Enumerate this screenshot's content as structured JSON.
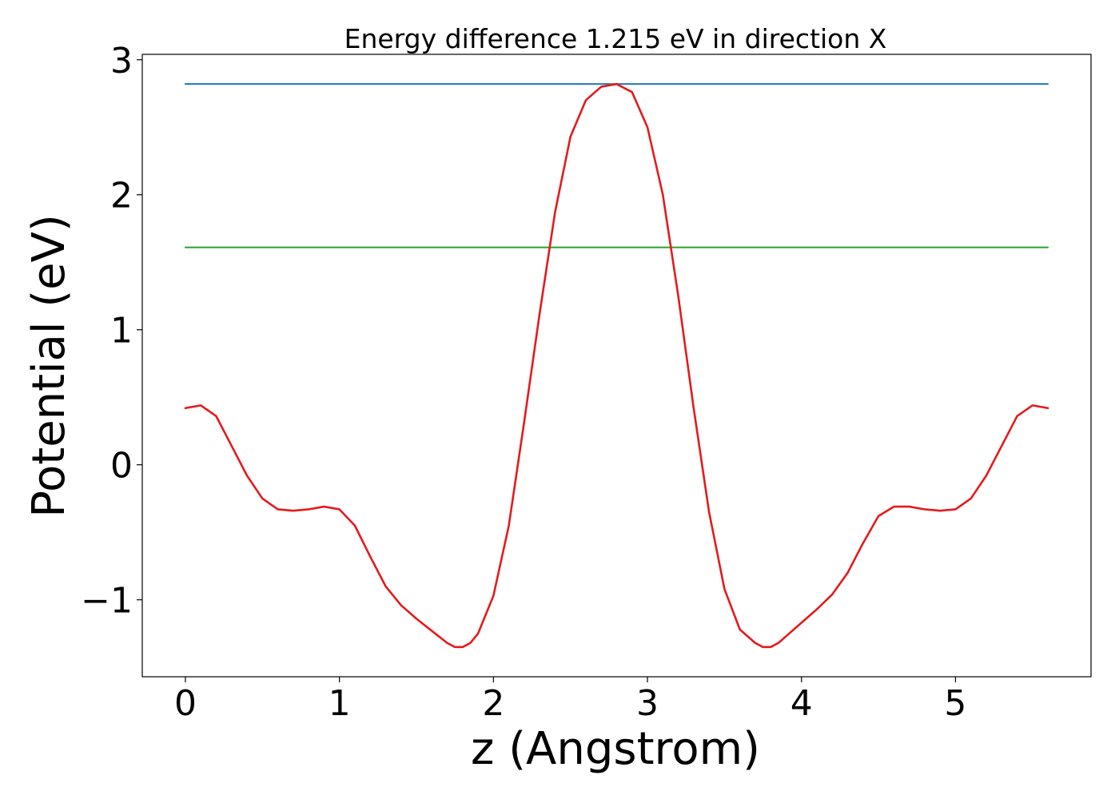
{
  "chart_data": {
    "type": "line",
    "title": "Energy difference 1.215 eV in direction X",
    "xlabel": "z (Angstrom)",
    "ylabel": "Potential (eV)",
    "xlim": [
      -0.28,
      5.88
    ],
    "ylim": [
      -1.57,
      3.04
    ],
    "xticks": [
      0,
      1,
      2,
      3,
      4,
      5
    ],
    "yticks": [
      -1,
      0,
      1,
      2,
      3
    ],
    "xtick_labels": [
      "0",
      "1",
      "2",
      "3",
      "4",
      "5"
    ],
    "ytick_labels": [
      "−1",
      "0",
      "1",
      "2",
      "3"
    ],
    "grid": false,
    "legend": "none",
    "series": [
      {
        "color": "#1f77b4",
        "x": [
          0,
          5.6
        ],
        "y": [
          2.82,
          2.82
        ]
      },
      {
        "color": "#2ca02c",
        "x": [
          0,
          5.6
        ],
        "y": [
          1.61,
          1.61
        ]
      },
      {
        "color": "#e41a1c",
        "x": [
          0.0,
          0.1,
          0.2,
          0.3,
          0.4,
          0.5,
          0.6,
          0.7,
          0.8,
          0.9,
          1.0,
          1.1,
          1.2,
          1.3,
          1.4,
          1.5,
          1.6,
          1.7,
          1.75,
          1.8,
          1.85,
          1.9,
          2.0,
          2.1,
          2.2,
          2.3,
          2.4,
          2.5,
          2.6,
          2.7,
          2.8,
          2.9,
          3.0,
          3.1,
          3.2,
          3.3,
          3.4,
          3.5,
          3.6,
          3.7,
          3.75,
          3.8,
          3.85,
          3.9,
          4.0,
          4.1,
          4.2,
          4.3,
          4.4,
          4.5,
          4.6,
          4.7,
          4.8,
          4.9,
          5.0,
          5.1,
          5.2,
          5.3,
          5.4,
          5.5,
          5.6
        ],
        "y": [
          0.42,
          0.44,
          0.36,
          0.14,
          -0.08,
          -0.25,
          -0.33,
          -0.34,
          -0.33,
          -0.31,
          -0.33,
          -0.45,
          -0.68,
          -0.9,
          -1.04,
          -1.14,
          -1.23,
          -1.32,
          -1.35,
          -1.35,
          -1.32,
          -1.25,
          -0.97,
          -0.45,
          0.32,
          1.12,
          1.87,
          2.43,
          2.7,
          2.8,
          2.82,
          2.76,
          2.5,
          2.0,
          1.25,
          0.42,
          -0.35,
          -0.92,
          -1.22,
          -1.32,
          -1.35,
          -1.35,
          -1.32,
          -1.27,
          -1.17,
          -1.07,
          -0.96,
          -0.8,
          -0.58,
          -0.38,
          -0.31,
          -0.31,
          -0.33,
          -0.34,
          -0.33,
          -0.25,
          -0.08,
          0.14,
          0.36,
          0.44,
          0.42
        ]
      }
    ]
  }
}
